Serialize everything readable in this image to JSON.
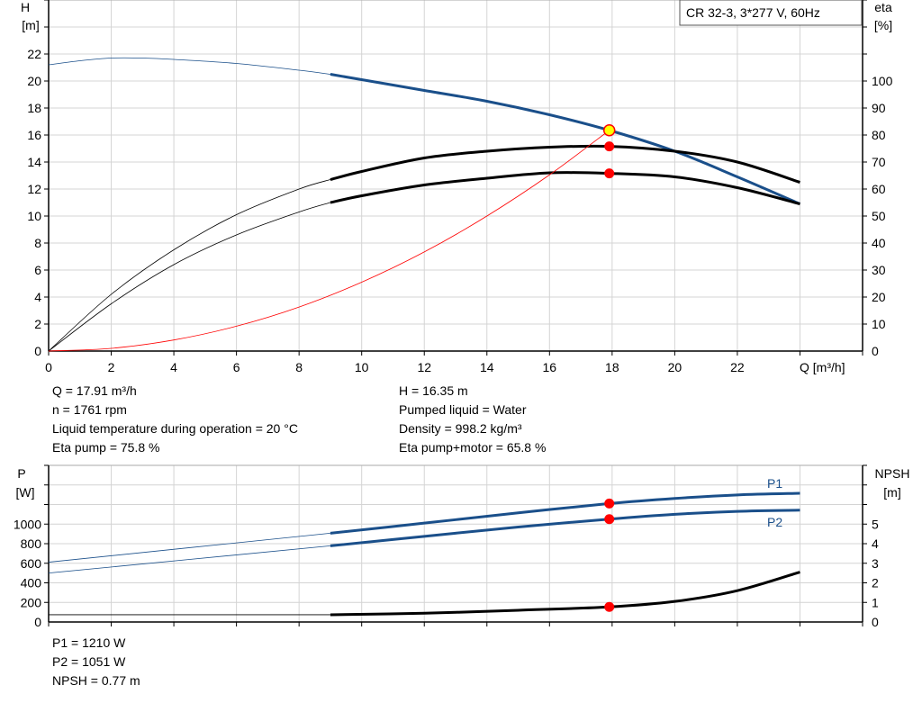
{
  "chart_data": [
    {
      "type": "line",
      "legend_box": "CR 32-3, 3*277 V, 60Hz",
      "xlabel": "Q [m³/h]",
      "ylabel_left": [
        "H",
        "[m]"
      ],
      "ylabel_right": [
        "eta",
        "[%]"
      ],
      "xlim": [
        0,
        26
      ],
      "ylim_left": [
        0,
        26
      ],
      "ylim_right": [
        0,
        130
      ],
      "xticks": [
        0,
        2,
        4,
        6,
        8,
        10,
        12,
        14,
        16,
        18,
        20,
        22
      ],
      "yticks_left": [
        0,
        2,
        4,
        6,
        8,
        10,
        12,
        14,
        16,
        18,
        20,
        22
      ],
      "yticks_right": [
        0,
        10,
        20,
        30,
        40,
        50,
        60,
        70,
        80,
        90,
        100
      ],
      "grid": true,
      "series": [
        {
          "key": "H",
          "axis": "left",
          "color": "#1a4f8a",
          "thick_from": 9,
          "x": [
            0,
            1,
            2,
            3,
            4,
            6,
            8,
            9,
            10,
            12,
            14,
            16,
            17.91,
            20,
            22,
            24
          ],
          "y": [
            21.2,
            21.5,
            21.7,
            21.7,
            21.6,
            21.3,
            20.8,
            20.5,
            20.1,
            19.3,
            18.5,
            17.5,
            16.35,
            14.8,
            12.9,
            10.9
          ]
        },
        {
          "key": "eta_pump",
          "axis": "right",
          "color": "#000000",
          "thick_from": 9,
          "x": [
            0,
            2,
            4,
            6,
            8,
            9,
            10,
            12,
            14,
            16,
            17.91,
            20,
            22,
            24
          ],
          "y": [
            0,
            21,
            37.5,
            50.5,
            60,
            63.5,
            66.5,
            71.5,
            74,
            75.5,
            75.8,
            74,
            70,
            62.5
          ]
        },
        {
          "key": "eta_total",
          "axis": "right",
          "color": "#000000",
          "thick_from": 9,
          "x": [
            0,
            2,
            4,
            6,
            8,
            9,
            10,
            12,
            14,
            16,
            17.91,
            20,
            22,
            24
          ],
          "y": [
            0,
            17.5,
            32,
            43,
            51.5,
            55,
            57.5,
            61.5,
            64,
            66,
            65.8,
            64.5,
            60.5,
            54.5
          ]
        },
        {
          "key": "system",
          "axis": "left",
          "color": "#ff0000",
          "x": [
            0,
            2,
            4,
            6,
            8,
            10,
            12,
            14,
            16,
            17.91
          ],
          "y": [
            0,
            0.2,
            0.82,
            1.84,
            3.26,
            5.1,
            7.34,
            10.0,
            13.05,
            16.35
          ]
        }
      ],
      "duty_point": {
        "q": 17.91,
        "h": 16.35,
        "eta_pump": 75.8,
        "eta_total": 65.8
      }
    },
    {
      "type": "line",
      "ylabel_left": [
        "P",
        "[W]"
      ],
      "ylabel_right": [
        "NPSH",
        "[m]"
      ],
      "xlim": [
        0,
        26
      ],
      "ylim_left": [
        0,
        1600
      ],
      "ylim_right": [
        0,
        8
      ],
      "yticks_left": [
        0,
        200,
        400,
        600,
        800,
        1000
      ],
      "yticks_right": [
        0,
        1,
        2,
        3,
        4,
        5
      ],
      "grid": true,
      "series": [
        {
          "name": "P1",
          "axis": "left",
          "color": "#1a4f8a",
          "thick_from": 9,
          "x": [
            0,
            9,
            12,
            15,
            17.91,
            20,
            22,
            24
          ],
          "y": [
            611,
            907,
            1010,
            1115,
            1210,
            1262,
            1298,
            1315
          ]
        },
        {
          "name": "P2",
          "axis": "left",
          "color": "#1a4f8a",
          "thick_from": 9,
          "x": [
            0,
            9,
            12,
            15,
            17.91,
            20,
            22,
            24
          ],
          "y": [
            500,
            778,
            875,
            970,
            1051,
            1100,
            1130,
            1142
          ]
        },
        {
          "key": "NPSH",
          "axis": "right",
          "color": "#000000",
          "thick_from": 9,
          "x": [
            0,
            9,
            12,
            15,
            17.91,
            20,
            22,
            24
          ],
          "y": [
            0.37,
            0.37,
            0.45,
            0.6,
            0.77,
            1.05,
            1.6,
            2.55
          ]
        }
      ],
      "duty_point": {
        "q": 17.91,
        "p1": 1210,
        "p2": 1051,
        "npsh": 0.77
      }
    }
  ],
  "info_top": {
    "left": [
      "Q = 17.91 m³/h",
      "n = 1761 rpm",
      "Liquid temperature during operation = 20 °C",
      "Eta pump = 75.8 %"
    ],
    "right": [
      "H = 16.35 m",
      "Pumped liquid = Water",
      "Density = 998.2 kg/m³",
      "Eta pump+motor = 65.8 %"
    ]
  },
  "info_bottom": [
    "P1 = 1210 W",
    "P2 = 1051 W",
    "NPSH = 0.77 m"
  ]
}
